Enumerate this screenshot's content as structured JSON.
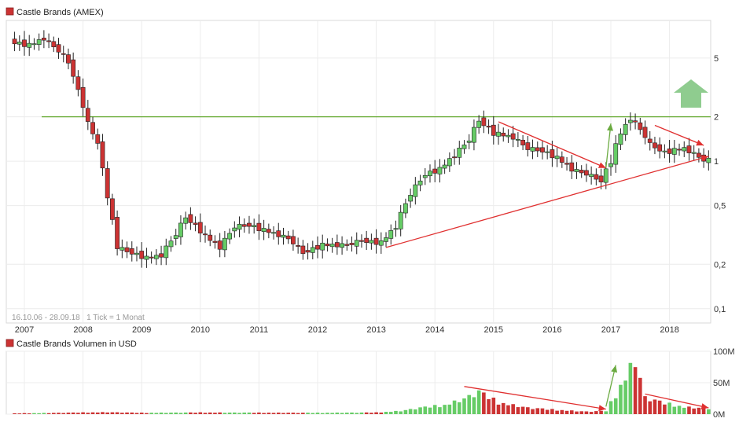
{
  "chart_data": [
    {
      "type": "candlestick",
      "title": "Castle Brands (AMEX)",
      "range_label": "16.10.06 - 28.09.18   1 Tick = 1 Monat",
      "y_scale": "log",
      "ylim": [
        0.08,
        9
      ],
      "x_ticks": [
        "2007",
        "2008",
        "2009",
        "2010",
        "2011",
        "2012",
        "2013",
        "2014",
        "2015",
        "2016",
        "2017",
        "2018"
      ],
      "y_ticks": [
        {
          "value": 5,
          "label": "5"
        },
        {
          "value": 2,
          "label": "2"
        },
        {
          "value": 1,
          "label": "1"
        },
        {
          "value": 0.5,
          "label": "0,5"
        },
        {
          "value": 0.2,
          "label": "0,2"
        },
        {
          "value": 0.1,
          "label": "0,1"
        }
      ],
      "up_color": "#66cc66",
      "down_color": "#cc3333",
      "resistance_line": {
        "value": 2.0,
        "color": "#66aa33"
      },
      "anchors": [
        [
          "2006-11",
          6.5
        ],
        [
          "2007-03",
          6.1
        ],
        [
          "2007-06",
          6.8
        ],
        [
          "2007-09",
          5.6
        ],
        [
          "2007-11",
          4.7
        ],
        [
          "2008-01",
          3.0
        ],
        [
          "2008-03",
          1.8
        ],
        [
          "2008-05",
          1.3
        ],
        [
          "2008-07",
          0.55
        ],
        [
          "2008-09",
          0.26
        ],
        [
          "2008-12",
          0.24
        ],
        [
          "2009-03",
          0.22
        ],
        [
          "2009-06",
          0.23
        ],
        [
          "2009-09",
          0.32
        ],
        [
          "2009-11",
          0.42
        ],
        [
          "2010-03",
          0.31
        ],
        [
          "2010-06",
          0.26
        ],
        [
          "2010-09",
          0.36
        ],
        [
          "2010-12",
          0.37
        ],
        [
          "2011-03",
          0.34
        ],
        [
          "2011-08",
          0.3
        ],
        [
          "2011-11",
          0.24
        ],
        [
          "2012-03",
          0.27
        ],
        [
          "2012-08",
          0.27
        ],
        [
          "2012-11",
          0.29
        ],
        [
          "2013-03",
          0.28
        ],
        [
          "2013-06",
          0.36
        ],
        [
          "2013-09",
          0.6
        ],
        [
          "2013-12",
          0.82
        ],
        [
          "2014-03",
          0.88
        ],
        [
          "2014-06",
          1.1
        ],
        [
          "2014-09",
          1.4
        ],
        [
          "2014-11",
          1.9
        ],
        [
          "2015-02",
          1.55
        ],
        [
          "2015-06",
          1.45
        ],
        [
          "2015-09",
          1.22
        ],
        [
          "2015-12",
          1.18
        ],
        [
          "2016-03",
          1.05
        ],
        [
          "2016-06",
          0.88
        ],
        [
          "2016-09",
          0.82
        ],
        [
          "2016-12",
          0.74
        ],
        [
          "2017-02",
          1.0
        ],
        [
          "2017-04",
          1.55
        ],
        [
          "2017-06",
          1.95
        ],
        [
          "2017-08",
          1.65
        ],
        [
          "2017-10",
          1.3
        ],
        [
          "2018-01",
          1.15
        ],
        [
          "2018-05",
          1.22
        ],
        [
          "2018-09",
          1.02
        ]
      ],
      "annotations": [
        {
          "type": "arrow",
          "from": [
            "2013-03",
            0.26
          ],
          "to": [
            "2018-09",
            1.08
          ],
          "color": "#e03030"
        },
        {
          "type": "arrow",
          "from": [
            "2015-02",
            1.85
          ],
          "to": [
            "2016-12",
            0.9
          ],
          "color": "#e03030"
        },
        {
          "type": "arrow",
          "from": [
            "2017-10",
            1.75
          ],
          "to": [
            "2018-08",
            1.28
          ],
          "color": "#e03030"
        },
        {
          "type": "arrow",
          "from": [
            "2016-12",
            0.9
          ],
          "to": [
            "2017-01",
            1.8
          ],
          "color": "#6aaa40"
        },
        {
          "type": "big-arrow",
          "direction": "up",
          "color": "#8fcc8f"
        }
      ]
    },
    {
      "type": "bar",
      "title": "Castle Brands Volumen in USD",
      "ylim": [
        0,
        100
      ],
      "y_ticks": [
        {
          "value": 100,
          "label": "100M"
        },
        {
          "value": 50,
          "label": "50M"
        },
        {
          "value": 0,
          "label": "0M"
        }
      ],
      "anchors": [
        [
          "2006-11",
          1.2
        ],
        [
          "2007-06",
          1.8
        ],
        [
          "2008-01",
          2.5
        ],
        [
          "2008-06",
          3.0
        ],
        [
          "2009-01",
          2.0
        ],
        [
          "2010-01",
          2.5
        ],
        [
          "2011-01",
          2.2
        ],
        [
          "2012-01",
          2.0
        ],
        [
          "2013-01",
          2.5
        ],
        [
          "2013-06",
          5.0
        ],
        [
          "2013-10",
          10
        ],
        [
          "2014-03",
          14
        ],
        [
          "2014-07",
          24
        ],
        [
          "2014-10",
          35
        ],
        [
          "2015-02",
          18
        ],
        [
          "2015-08",
          10
        ],
        [
          "2016-01",
          7
        ],
        [
          "2016-08",
          4
        ],
        [
          "2016-12",
          5
        ],
        [
          "2017-02",
          30
        ],
        [
          "2017-04",
          58
        ],
        [
          "2017-06",
          85
        ],
        [
          "2017-08",
          26
        ],
        [
          "2017-12",
          17
        ],
        [
          "2018-04",
          11
        ],
        [
          "2018-09",
          9
        ]
      ],
      "annotations": [
        {
          "type": "arrow",
          "from": [
            "2014-07",
            44
          ],
          "to": [
            "2016-12",
            8
          ],
          "color": "#e03030"
        },
        {
          "type": "arrow",
          "from": [
            "2017-08",
            32
          ],
          "to": [
            "2018-09",
            10
          ],
          "color": "#e03030"
        },
        {
          "type": "arrow",
          "from": [
            "2016-12",
            12
          ],
          "to": [
            "2017-02",
            78
          ],
          "color": "#6aaa40"
        }
      ]
    }
  ]
}
